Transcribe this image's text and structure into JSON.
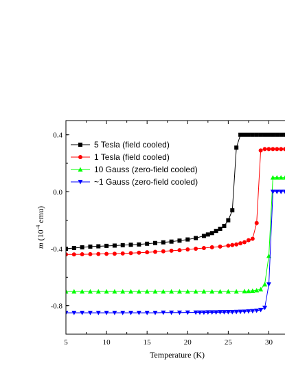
{
  "chart_data": {
    "type": "line",
    "title": "",
    "xlabel": "Temperature (K)",
    "ylabel_prefix": "m",
    "ylabel_mid": " (10",
    "ylabel_exp": "-4",
    "ylabel_suffix": " emu)",
    "xlim": [
      5,
      32.5
    ],
    "ylim": [
      -1.0,
      0.5
    ],
    "xticks": [
      5,
      10,
      15,
      20,
      25,
      30
    ],
    "xtick_labels": [
      "5",
      "10",
      "15",
      "20",
      "25",
      "30"
    ],
    "yticks": [
      0.4,
      0.0,
      -0.4,
      -0.8
    ],
    "ytick_labels": [
      "0.4",
      "0.0",
      "-0.4",
      "-0.8"
    ],
    "legend_position": "top-left",
    "grid": false,
    "series": [
      {
        "name": "5 Tesla (field cooled)",
        "color": "#000000",
        "marker": "square",
        "x": [
          5,
          6,
          7,
          8,
          9,
          10,
          11,
          12,
          13,
          14,
          15,
          16,
          17,
          18,
          19,
          20,
          21,
          22,
          22.5,
          23,
          23.5,
          24,
          24.5,
          25,
          25.5,
          26,
          26.5,
          27,
          27.5,
          28,
          28.5,
          29,
          29.5,
          30,
          30.5,
          31,
          31.5,
          32,
          32.5
        ],
        "y": [
          -0.4,
          -0.395,
          -0.39,
          -0.385,
          -0.383,
          -0.38,
          -0.378,
          -0.375,
          -0.372,
          -0.37,
          -0.365,
          -0.36,
          -0.355,
          -0.35,
          -0.343,
          -0.335,
          -0.325,
          -0.31,
          -0.3,
          -0.29,
          -0.275,
          -0.26,
          -0.24,
          -0.2,
          -0.13,
          0.31,
          0.4,
          0.4,
          0.4,
          0.4,
          0.4,
          0.4,
          0.4,
          0.4,
          0.4,
          0.4,
          0.4,
          0.4,
          0.4
        ]
      },
      {
        "name": "1 Tesla (field cooled)",
        "color": "#ff0000",
        "marker": "circle",
        "x": [
          5,
          6,
          7,
          8,
          9,
          10,
          11,
          12,
          13,
          14,
          15,
          16,
          17,
          18,
          19,
          20,
          21,
          22,
          23,
          24,
          25,
          25.5,
          26,
          26.5,
          27,
          27.5,
          28,
          28.5,
          29,
          29.5,
          30,
          30.5,
          31,
          31.5,
          32,
          32.5
        ],
        "y": [
          -0.44,
          -0.44,
          -0.439,
          -0.438,
          -0.437,
          -0.436,
          -0.435,
          -0.433,
          -0.431,
          -0.428,
          -0.425,
          -0.422,
          -0.418,
          -0.414,
          -0.41,
          -0.405,
          -0.4,
          -0.395,
          -0.39,
          -0.385,
          -0.378,
          -0.374,
          -0.37,
          -0.362,
          -0.354,
          -0.34,
          -0.33,
          -0.22,
          0.29,
          0.3,
          0.3,
          0.3,
          0.3,
          0.3,
          0.3,
          0.3
        ]
      },
      {
        "name": "10 Gauss (zero-field cooled)",
        "color": "#00ff00",
        "marker": "triangle-up",
        "x": [
          5,
          6,
          7,
          8,
          9,
          10,
          11,
          12,
          13,
          14,
          15,
          16,
          17,
          18,
          19,
          20,
          21,
          22,
          23,
          24,
          25,
          26,
          27,
          27.5,
          28,
          28.5,
          29,
          29.5,
          30,
          30.5,
          31,
          31.5,
          32,
          32.5
        ],
        "y": [
          -0.7,
          -0.7,
          -0.7,
          -0.7,
          -0.7,
          -0.7,
          -0.7,
          -0.7,
          -0.7,
          -0.7,
          -0.7,
          -0.7,
          -0.7,
          -0.7,
          -0.7,
          -0.7,
          -0.7,
          -0.7,
          -0.7,
          -0.7,
          -0.7,
          -0.7,
          -0.698,
          -0.697,
          -0.695,
          -0.692,
          -0.685,
          -0.65,
          -0.45,
          0.1,
          0.1,
          0.1,
          0.1,
          0.1
        ]
      },
      {
        "name": "~1 Gauss (zero-field cooled)",
        "color": "#0000ff",
        "marker": "triangle-down",
        "x": [
          5,
          6,
          7,
          8,
          9,
          10,
          11,
          12,
          13,
          14,
          15,
          16,
          17,
          18,
          19,
          20,
          21,
          21.5,
          22,
          22.5,
          23,
          23.5,
          24,
          24.5,
          25,
          25.5,
          26,
          26.5,
          27,
          27.5,
          28,
          28.5,
          29,
          29.5,
          30,
          30.5,
          31,
          31.5,
          32,
          32.5
        ],
        "y": [
          -0.85,
          -0.85,
          -0.85,
          -0.85,
          -0.85,
          -0.85,
          -0.85,
          -0.85,
          -0.85,
          -0.85,
          -0.85,
          -0.85,
          -0.849,
          -0.849,
          -0.849,
          -0.848,
          -0.848,
          -0.848,
          -0.848,
          -0.847,
          -0.847,
          -0.847,
          -0.846,
          -0.846,
          -0.845,
          -0.845,
          -0.844,
          -0.843,
          -0.842,
          -0.84,
          -0.838,
          -0.835,
          -0.83,
          -0.815,
          -0.65,
          0.0,
          0.0,
          0.0,
          0.0,
          0.0
        ]
      }
    ]
  }
}
